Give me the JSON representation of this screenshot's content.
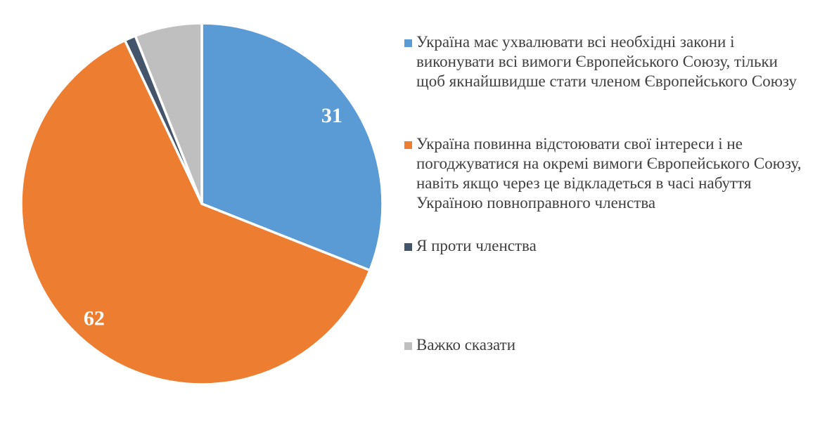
{
  "chart_data": {
    "type": "pie",
    "title": "",
    "legend_position": "right",
    "direction": "clockwise",
    "start_angle_deg": 0,
    "data_label_color": "#FFFFFF",
    "slice_border_color": "#FFFFFF",
    "slices": [
      {
        "label": "Україна має ухвалювати всі необхідні закони і виконувати всі вимоги Європейського Союзу, тільки щоб якнайшвидше стати членом Європейського Союзу",
        "value": 31,
        "color": "#5B9BD5",
        "show_label": true
      },
      {
        "label": "Україна повинна відстоювати свої інтереси і не погоджуватися на окремі вимоги Європейського Союзу, навіть якщо через це відкладеться в часі набуття Україною повноправного членства",
        "value": 62,
        "color": "#ED7D31",
        "show_label": false
      },
      {
        "label": "Я проти членства",
        "value": 1,
        "color": "#44546A",
        "show_label": false
      },
      {
        "label": "Важко сказати",
        "value": 6,
        "color": "#BFBFBF",
        "show_label": false
      }
    ],
    "visible_data_labels": [
      "31",
      "62"
    ]
  }
}
